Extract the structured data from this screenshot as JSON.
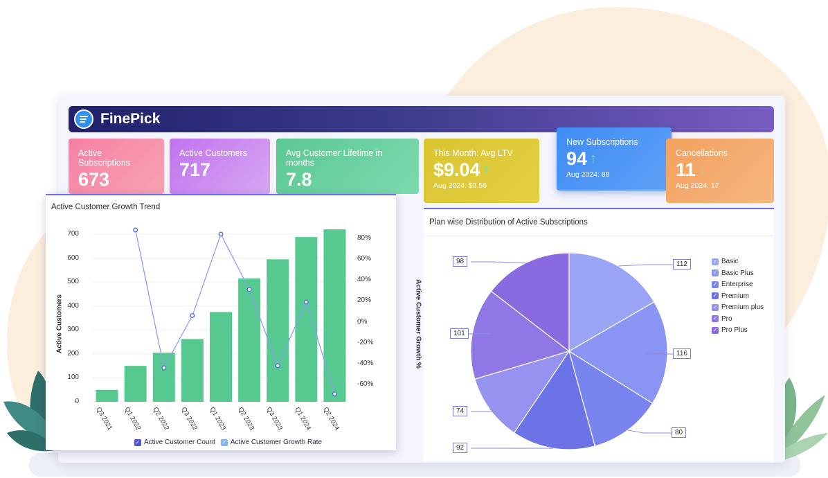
{
  "header": {
    "brand": "FinePick"
  },
  "kpis": [
    {
      "label": "Active Subscriptions",
      "value": "673"
    },
    {
      "label": "Active Customers",
      "value": "717"
    },
    {
      "label": "Avg Customer Lifetime in months",
      "value": "7.8"
    },
    {
      "label": "This Month: Avg LTV",
      "value": "$9.04",
      "trend": "up",
      "sub": "Aug 2024: $8.56"
    },
    {
      "label": "New Subscriptions",
      "value": "94",
      "trend": "up",
      "sub": "Aug 2024: 88"
    },
    {
      "label": "Cancellations",
      "value": "11",
      "trend": "down",
      "sub": "Aug 2024: 17"
    }
  ],
  "colors": {
    "bar": "#55c98f",
    "line": "#8a9ff3",
    "up": "#7be39f",
    "down": "#7be39f"
  },
  "chart_data": [
    {
      "type": "bar",
      "title": "Active Customer Growth Trend",
      "categories": [
        "Q3 2021",
        "Q1 2022",
        "Q2 2022",
        "Q3 2022",
        "Q1 2023",
        "Q2 2023",
        "Q3 2023",
        "Q1 2024",
        "Q2 2024"
      ],
      "series": [
        {
          "name": "Active Customer Count",
          "type": "bar",
          "axis": "left",
          "values": [
            50,
            150,
            205,
            262,
            375,
            515,
            595,
            688,
            720
          ]
        },
        {
          "name": "Active Customer Growth Rate",
          "type": "line",
          "axis": "right",
          "values": [
            null,
            88,
            -44,
            6,
            84,
            31,
            -42,
            19,
            -69
          ]
        }
      ],
      "ylabel": "Active Customers",
      "y2label": "Active Customer Growth %",
      "ylim": [
        0,
        700
      ],
      "yticks": [
        "700",
        "600",
        "500",
        "400",
        "300",
        "200",
        "100",
        "0"
      ],
      "y2lim": [
        -70,
        90
      ],
      "y2ticks": [
        "80%",
        "60%",
        "40%",
        "20%",
        "0%",
        "-20%",
        "-40%",
        "-60%"
      ]
    },
    {
      "type": "pie",
      "title": "Plan wise Distribution of Active Subscriptions",
      "slices": [
        {
          "label": "Basic",
          "value": 112,
          "color": "#9aa4f5"
        },
        {
          "label": "Basic Plus",
          "value": 116,
          "color": "#8a94f3"
        },
        {
          "label": "Enterprise",
          "value": 80,
          "color": "#7a84ef"
        },
        {
          "label": "Premium",
          "value": 92,
          "color": "#6b73e6"
        },
        {
          "label": "Premium plus",
          "value": 74,
          "color": "#9592f0"
        },
        {
          "label": "Pro",
          "value": 101,
          "color": "#8f78e6"
        },
        {
          "label": "Pro Plus",
          "value": 98,
          "color": "#8a6ae0"
        }
      ]
    }
  ]
}
